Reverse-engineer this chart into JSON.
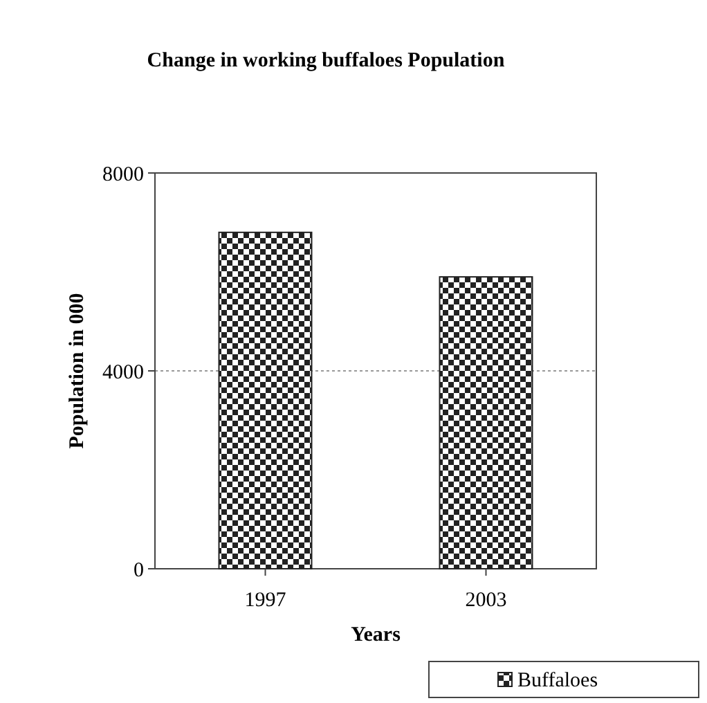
{
  "chart_data": {
    "type": "bar",
    "title": "Change in working buffaloes Population",
    "xlabel": "Years",
    "ylabel": "Population in 000",
    "categories": [
      "1997",
      "2003"
    ],
    "series": [
      {
        "name": "Buffaloes",
        "color": "#222222",
        "values": [
          6800,
          5900
        ]
      }
    ],
    "ylim": [
      0,
      8000
    ],
    "yticks": [
      0,
      4000,
      8000
    ],
    "grid": "y",
    "legend": "bottom right"
  }
}
